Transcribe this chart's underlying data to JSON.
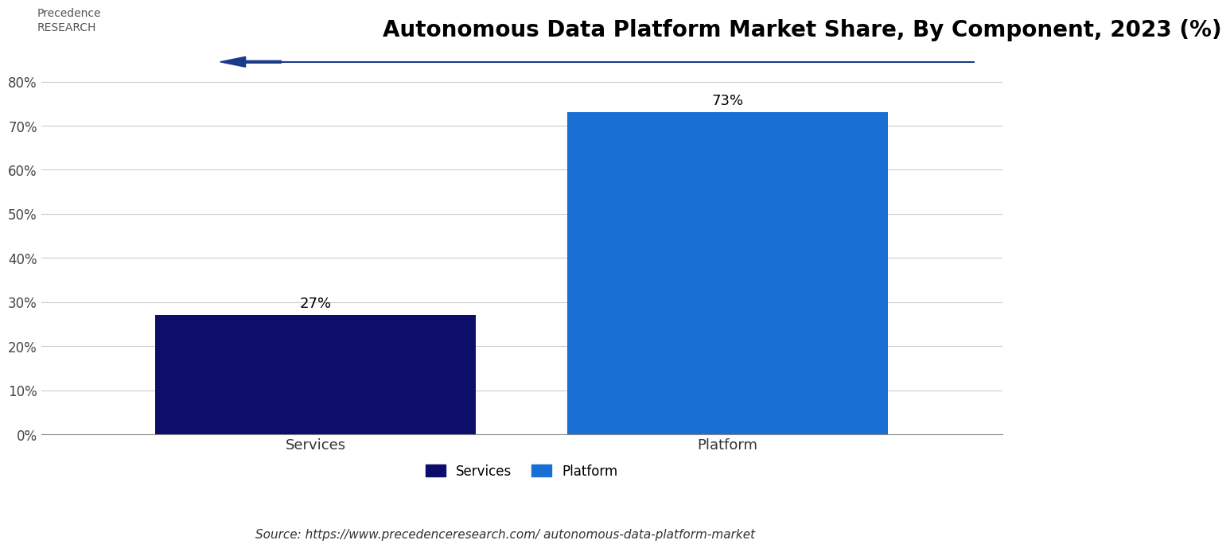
{
  "title": "Autonomous Data Platform Market Share, By Component, 2023 (%)",
  "categories": [
    "Services",
    "Platform"
  ],
  "values": [
    27,
    73
  ],
  "bar_colors": [
    "#0d0d6b",
    "#1a6fd4"
  ],
  "label_values": [
    "27%",
    "73%"
  ],
  "yticks": [
    0,
    10,
    20,
    30,
    40,
    50,
    60,
    70,
    80
  ],
  "ytick_labels": [
    "0%",
    "10%",
    "20%",
    "30%",
    "40%",
    "50%",
    "60%",
    "70%",
    "80%"
  ],
  "ylim": [
    0,
    85
  ],
  "source_text": "Source: https://www.precedenceresearch.com/ autonomous-data-platform-market",
  "legend_labels": [
    "Services",
    "Platform"
  ],
  "legend_colors": [
    "#0d0d6b",
    "#1a6fd4"
  ],
  "background_color": "#ffffff",
  "title_fontsize": 20,
  "bar_label_fontsize": 13,
  "tick_fontsize": 12,
  "source_fontsize": 11,
  "legend_fontsize": 12,
  "bar_width": 0.35
}
